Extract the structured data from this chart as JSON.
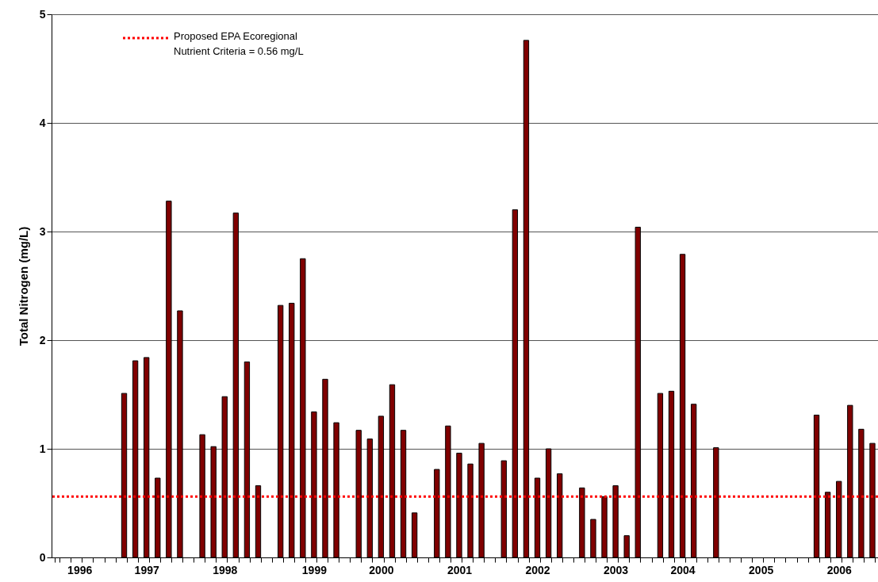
{
  "chart_data": {
    "type": "bar",
    "ylabel": "Total Nitrogen (mg/L)",
    "categories": [
      null,
      null,
      "1996",
      null,
      null,
      null,
      null,
      null,
      "1997",
      null,
      null,
      null,
      null,
      null,
      null,
      "1998",
      null,
      null,
      null,
      null,
      null,
      null,
      null,
      "1999",
      null,
      null,
      null,
      null,
      null,
      "2000",
      null,
      null,
      null,
      null,
      null,
      null,
      "2001",
      null,
      null,
      null,
      null,
      null,
      null,
      "2002",
      null,
      null,
      null,
      null,
      null,
      null,
      "2003",
      null,
      null,
      null,
      null,
      null,
      "2004",
      null,
      null,
      null,
      null,
      null,
      null,
      "2005",
      null,
      null,
      null,
      null,
      null,
      null,
      "2006",
      null,
      null,
      null
    ],
    "series": [
      {
        "color": "#800000",
        "values": [
          null,
          null,
          null,
          null,
          null,
          null,
          1.51,
          1.81,
          1.84,
          0.73,
          3.28,
          2.27,
          null,
          1.13,
          1.02,
          1.48,
          3.17,
          1.8,
          0.66,
          null,
          2.32,
          2.34,
          2.75,
          1.34,
          1.64,
          1.24,
          null,
          1.17,
          1.09,
          1.3,
          1.59,
          1.17,
          0.41,
          null,
          0.81,
          1.21,
          0.96,
          0.86,
          1.05,
          null,
          0.89,
          3.2,
          4.76,
          0.73,
          1.0,
          0.77,
          null,
          0.64,
          0.35,
          0.56,
          0.66,
          0.2,
          3.04,
          null,
          1.51,
          1.53,
          2.79,
          1.41,
          null,
          1.01,
          null,
          null,
          null,
          null,
          null,
          null,
          null,
          null,
          1.31,
          0.6,
          0.7,
          1.4,
          1.18,
          1.05
        ]
      }
    ],
    "ylim": [
      0,
      5
    ],
    "yticks": [
      0,
      1,
      2,
      3,
      4,
      5
    ],
    "grid": "y",
    "legend": "top left",
    "ref_lines": [
      {
        "axis": "y",
        "value": 0.56,
        "label": "Proposed EPA Ecoregional\nNutrient Criteria = 0.56 mg/L",
        "color": "#ff0000",
        "line_style": "dotted"
      }
    ]
  }
}
